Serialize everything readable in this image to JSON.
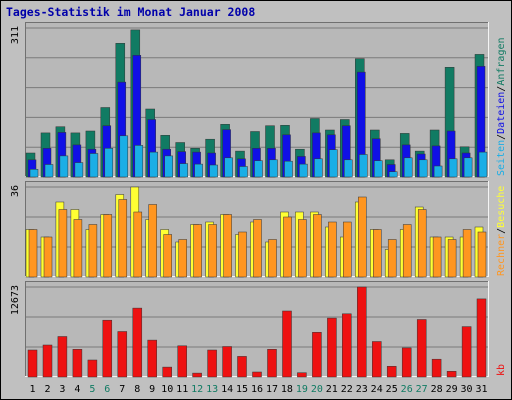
{
  "title": "Tages-Statistik im Monat Januar 2008",
  "colors": {
    "background": "#C0C0C0",
    "panel": "#B8B8B8",
    "grid": "#7A7A7A",
    "title": "#0000AA",
    "anfragen": "#117B63",
    "dateien": "#1010E6",
    "seiten": "#1AAEE6",
    "besuche": "#FFFF33",
    "rechner": "#FF9620",
    "kb": "#EE1111",
    "weekend": "#117B63",
    "weekday": "#000000"
  },
  "legend": {
    "top": {
      "separator": "/",
      "items": [
        "Anfragen",
        "Dateien",
        "Seiten"
      ]
    },
    "middle": {
      "separator": "/",
      "items": [
        "Besuche",
        "Rechner"
      ]
    },
    "bottom": {
      "items": [
        "kb"
      ]
    }
  },
  "chart_data": [
    {
      "type": "bar",
      "title": "Anfragen / Dateien / Seiten",
      "ymax_label": "311",
      "ylim": [
        0,
        311
      ],
      "categories": [
        "1",
        "2",
        "3",
        "4",
        "5",
        "6",
        "7",
        "8",
        "9",
        "10",
        "11",
        "12",
        "13",
        "14",
        "15",
        "16",
        "17",
        "18",
        "19",
        "20",
        "21",
        "22",
        "23",
        "24",
        "25",
        "26",
        "27",
        "28",
        "29",
        "30",
        "31"
      ],
      "weekend_days": [
        5,
        6,
        12,
        13,
        19,
        20,
        26,
        27
      ],
      "series": [
        {
          "name": "Anfragen",
          "color": "#117B63",
          "values": [
            50,
            92,
            105,
            92,
            96,
            145,
            279,
            307,
            142,
            87,
            72,
            60,
            79,
            110,
            54,
            95,
            107,
            108,
            58,
            122,
            98,
            120,
            247,
            98,
            36,
            91,
            54,
            98,
            229,
            63,
            256
          ]
        },
        {
          "name": "Dateien",
          "color": "#1010E6",
          "values": [
            36,
            60,
            93,
            67,
            58,
            107,
            198,
            254,
            120,
            58,
            53,
            52,
            50,
            99,
            38,
            60,
            60,
            88,
            43,
            92,
            88,
            107,
            219,
            80,
            26,
            67,
            48,
            65,
            96,
            50,
            231
          ]
        },
        {
          "name": "Seiten",
          "color": "#1AAEE6",
          "values": [
            16,
            26,
            44,
            30,
            49,
            60,
            86,
            66,
            52,
            44,
            28,
            27,
            25,
            40,
            22,
            34,
            36,
            33,
            27,
            38,
            57,
            36,
            47,
            34,
            11,
            40,
            36,
            23,
            38,
            40,
            52
          ]
        }
      ]
    },
    {
      "type": "bar",
      "title": "Besuche / Rechner",
      "ymax_label": "36",
      "ylim": [
        0,
        36
      ],
      "categories": [
        "1",
        "2",
        "3",
        "4",
        "5",
        "6",
        "7",
        "8",
        "9",
        "10",
        "11",
        "12",
        "13",
        "14",
        "15",
        "16",
        "17",
        "18",
        "19",
        "20",
        "21",
        "22",
        "23",
        "24",
        "25",
        "26",
        "27",
        "28",
        "29",
        "30",
        "31"
      ],
      "series": [
        {
          "name": "Besuche",
          "color": "#FFFF33",
          "values": [
            19,
            16,
            30,
            27,
            19,
            25,
            33,
            36,
            23,
            19,
            14,
            21,
            22,
            25,
            17,
            22,
            14,
            26,
            26,
            26,
            20,
            16,
            30,
            19,
            11,
            19,
            28,
            16,
            16,
            16,
            20
          ]
        },
        {
          "name": "Rechner",
          "color": "#FF9620",
          "values": [
            19,
            16,
            27,
            23,
            21,
            25,
            31,
            26,
            29,
            17,
            15,
            21,
            21,
            25,
            18,
            23,
            15,
            24,
            23,
            25,
            22,
            22,
            32,
            19,
            15,
            21,
            27,
            16,
            15,
            19,
            18
          ]
        }
      ]
    },
    {
      "type": "bar",
      "title": "kb",
      "ymax_label": "12673",
      "ylim": [
        0,
        12673
      ],
      "categories": [
        "1",
        "2",
        "3",
        "4",
        "5",
        "6",
        "7",
        "8",
        "9",
        "10",
        "11",
        "12",
        "13",
        "14",
        "15",
        "16",
        "17",
        "18",
        "19",
        "20",
        "21",
        "22",
        "23",
        "24",
        "25",
        "26",
        "27",
        "28",
        "29",
        "30",
        "31"
      ],
      "series": [
        {
          "name": "kb",
          "color": "#EE1111",
          "values": [
            3800,
            4500,
            5700,
            3900,
            2400,
            8000,
            6400,
            9700,
            5200,
            1400,
            4400,
            550,
            3800,
            4300,
            2900,
            700,
            3900,
            9300,
            600,
            6300,
            8300,
            8900,
            12700,
            5000,
            1500,
            4100,
            8100,
            2500,
            800,
            7100,
            11000
          ]
        }
      ]
    }
  ]
}
